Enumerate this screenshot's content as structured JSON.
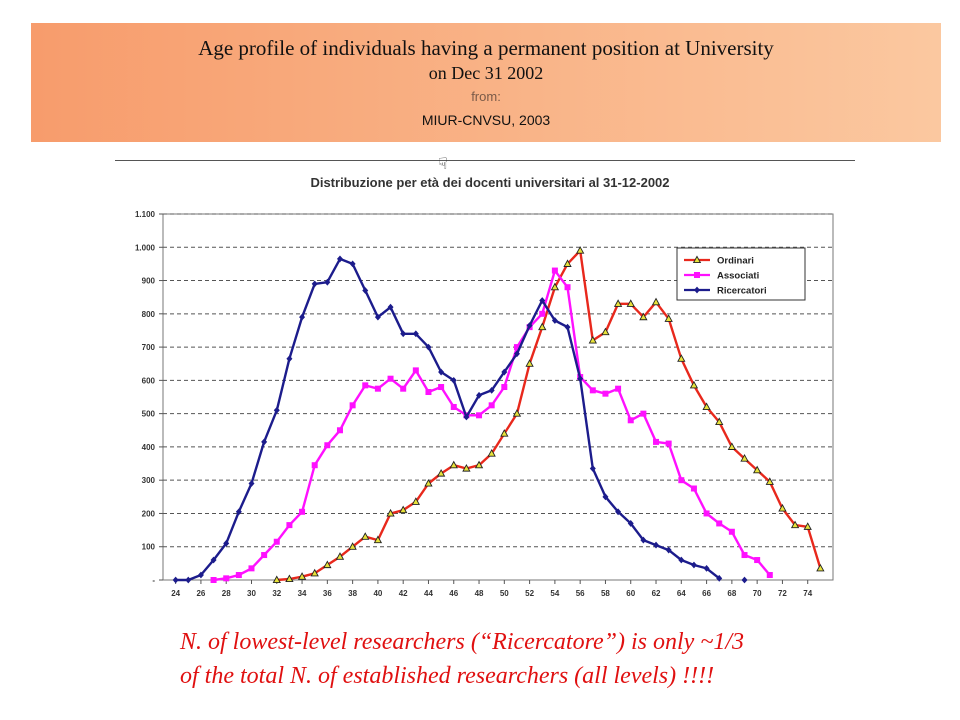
{
  "header": {
    "title_line1": "Age profile of individuals having a permanent position at University",
    "title_line2": "on Dec 31 2002",
    "from_label": "from:",
    "source": "MIUR-CNVSU, 2003"
  },
  "cursor_icon": "hand-pointer-icon",
  "footer": {
    "line1": "N. of lowest-level researchers (“Ricercatore”) is only ~1/3",
    "line2": "of the total N. of established researchers (all levels) !!!!"
  },
  "chart_data": {
    "type": "line",
    "title": "Distribuzione per età dei docenti universitari al 31-12-2002",
    "xlabel": "",
    "ylabel": "",
    "x": [
      24,
      25,
      26,
      27,
      28,
      29,
      30,
      31,
      32,
      33,
      34,
      35,
      36,
      37,
      38,
      39,
      40,
      41,
      42,
      43,
      44,
      45,
      46,
      47,
      48,
      49,
      50,
      51,
      52,
      53,
      54,
      55,
      56,
      57,
      58,
      59,
      60,
      61,
      62,
      63,
      64,
      65,
      66,
      67,
      68,
      69,
      70,
      71,
      72,
      73,
      74,
      75
    ],
    "xticks": [
      "24",
      "26",
      "28",
      "30",
      "32",
      "34",
      "36",
      "38",
      "40",
      "42",
      "44",
      "46",
      "48",
      "50",
      "52",
      "54",
      "56",
      "58",
      "60",
      "62",
      "64",
      "66",
      "68",
      "70",
      "72",
      "74"
    ],
    "ylim": [
      0,
      1100
    ],
    "yticks": [
      {
        "value": 0,
        "label": "-"
      },
      {
        "value": 100,
        "label": "100"
      },
      {
        "value": 200,
        "label": "200"
      },
      {
        "value": 300,
        "label": "300"
      },
      {
        "value": 400,
        "label": "400"
      },
      {
        "value": 500,
        "label": "500"
      },
      {
        "value": 600,
        "label": "600"
      },
      {
        "value": 700,
        "label": "700"
      },
      {
        "value": 800,
        "label": "800"
      },
      {
        "value": 900,
        "label": "900"
      },
      {
        "value": 1000,
        "label": "1.000"
      },
      {
        "value": 1100,
        "label": "1.100"
      }
    ],
    "grid": true,
    "legend_position": "top-right",
    "series": [
      {
        "name": "Ordinari",
        "color": "#e8281c",
        "marker": "triangle",
        "values": [
          null,
          null,
          null,
          null,
          null,
          null,
          null,
          null,
          0,
          3,
          10,
          20,
          45,
          70,
          100,
          130,
          120,
          200,
          210,
          235,
          290,
          320,
          345,
          335,
          345,
          380,
          440,
          500,
          650,
          760,
          880,
          950,
          990,
          720,
          745,
          830,
          830,
          790,
          835,
          785,
          665,
          585,
          520,
          475,
          400,
          365,
          330,
          295,
          215,
          165,
          160,
          35
        ]
      },
      {
        "name": "Associati",
        "color": "#ff10ff",
        "marker": "square",
        "values": [
          null,
          null,
          null,
          0,
          5,
          15,
          35,
          75,
          115,
          165,
          205,
          345,
          405,
          450,
          525,
          585,
          575,
          605,
          575,
          630,
          565,
          580,
          520,
          495,
          495,
          525,
          580,
          700,
          760,
          800,
          930,
          880,
          610,
          570,
          560,
          575,
          480,
          500,
          415,
          410,
          300,
          275,
          200,
          170,
          145,
          75,
          60,
          15,
          null,
          null,
          null,
          null
        ]
      },
      {
        "name": "Ricercatori",
        "color": "#1c1c8c",
        "marker": "diamond",
        "values": [
          0,
          0,
          15,
          60,
          110,
          205,
          290,
          415,
          510,
          665,
          790,
          890,
          895,
          965,
          950,
          870,
          790,
          820,
          740,
          740,
          700,
          625,
          600,
          490,
          555,
          570,
          625,
          680,
          765,
          840,
          780,
          760,
          605,
          335,
          250,
          205,
          170,
          120,
          105,
          90,
          60,
          45,
          35,
          5,
          null,
          0,
          null,
          null,
          null,
          null,
          null,
          null
        ]
      }
    ]
  }
}
